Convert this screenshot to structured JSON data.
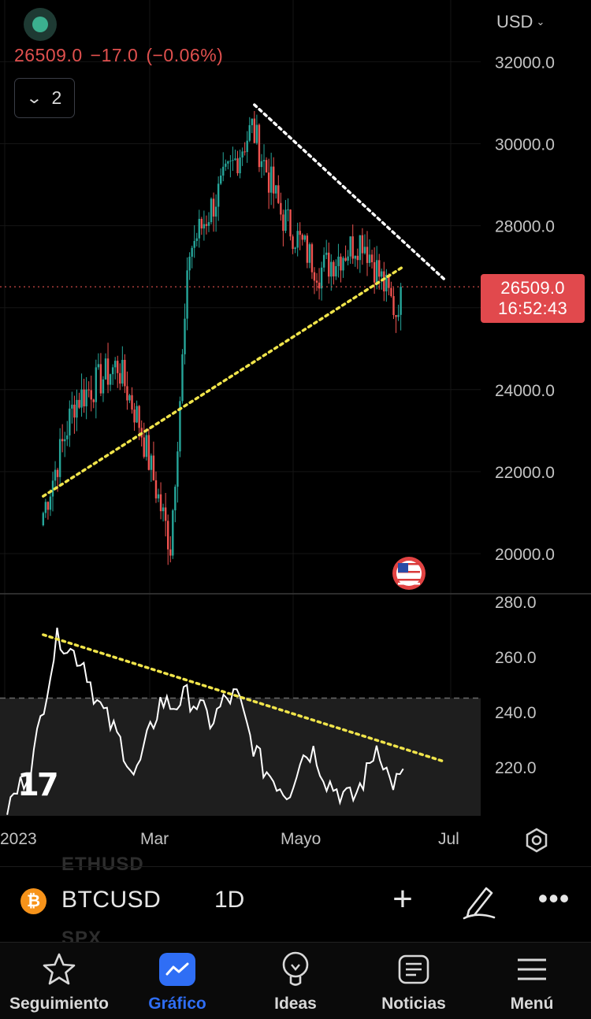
{
  "header": {
    "currency": "USD",
    "last_price": "26509.0",
    "change": "−17.0",
    "change_pct": "(−0.06%)",
    "indicator_count": "2"
  },
  "price_tag": {
    "price": "26509.0",
    "countdown": "16:52:43"
  },
  "colors": {
    "up": "#26a69a",
    "down": "#ef5350",
    "price_line": "#e0504e",
    "trend_yellow": "#f0e44a",
    "trend_white": "#ffffff",
    "accent": "#2f6ef5"
  },
  "chart_data": [
    {
      "type": "candlestick",
      "symbol": "BTCUSD",
      "interval": "1D",
      "x_ticks": [
        "2023",
        "Mar",
        "Mayo",
        "Jul"
      ],
      "y_ticks": [
        20000,
        22000,
        24000,
        26000,
        28000,
        30000,
        32000
      ],
      "y_tick_labels": [
        "20000.0",
        "22000.0",
        "24000.0",
        "",
        "28000.0",
        "30000.0",
        "32000.0"
      ],
      "ylim": [
        19000,
        33000
      ],
      "current_price": 26509,
      "grid": true,
      "ohlc_anchors": [
        {
          "date": "2023-01-16",
          "close": 21000
        },
        {
          "date": "2023-01-29",
          "close": 23700
        },
        {
          "date": "2023-02-16",
          "close": 24600
        },
        {
          "date": "2023-02-25",
          "close": 23200
        },
        {
          "date": "2023-03-10",
          "close": 20200
        },
        {
          "date": "2023-03-18",
          "close": 27400
        },
        {
          "date": "2023-04-13",
          "close": 30400
        },
        {
          "date": "2023-04-25",
          "close": 28300
        },
        {
          "date": "2023-05-11",
          "close": 26900
        },
        {
          "date": "2023-05-29",
          "close": 27700
        },
        {
          "date": "2023-06-12",
          "close": 25900
        },
        {
          "date": "2023-06-14",
          "close": 26509
        }
      ],
      "trendlines": [
        {
          "color": "white",
          "style": "dotted",
          "from": {
            "date": "2023-04-14",
            "price": 30950
          },
          "to": {
            "date": "2023-07-02",
            "price": 26700
          }
        },
        {
          "color": "yellow",
          "style": "dotted",
          "from": {
            "date": "2023-01-16",
            "price": 21400
          },
          "to": {
            "date": "2023-06-15",
            "price": 27000
          }
        }
      ]
    },
    {
      "type": "line",
      "series": [
        {
          "values": [
            205,
            213,
            222,
            247,
            268,
            262,
            258,
            244,
            236,
            228,
            216,
            230,
            244,
            242,
            246,
            242,
            236,
            244,
            246,
            231,
            220,
            215,
            210,
            224,
            226,
            215,
            211,
            208,
            216,
            229,
            214,
            216
          ]
        }
      ],
      "ylim": [
        205,
        285
      ],
      "y_ticks": [
        220,
        240,
        260,
        280
      ],
      "y_tick_labels": [
        "220.0",
        "240.0",
        "260.0",
        "280.0"
      ],
      "reference_line": 245,
      "trendlines": [
        {
          "color": "yellow",
          "style": "dotted",
          "from": {
            "date": "2023-01-16",
            "value": 268
          },
          "to": {
            "date": "2023-07-02",
            "value": 222
          }
        }
      ]
    }
  ],
  "time_axis": {
    "labels": [
      "2023",
      "Mar",
      "Mayo",
      "Jul"
    ]
  },
  "ghost_symbols": [
    "ETHUSD",
    "SPX"
  ],
  "symbol_bar": {
    "symbol": "BTCUSD",
    "interval": "1D",
    "btc_glyph": "₿"
  },
  "tabs": [
    {
      "label": "Seguimiento",
      "icon": "star-icon",
      "active": false
    },
    {
      "label": "Gráfico",
      "icon": "chart-icon",
      "active": true
    },
    {
      "label": "Ideas",
      "icon": "lightbulb-icon",
      "active": false
    },
    {
      "label": "Noticias",
      "icon": "news-icon",
      "active": false
    },
    {
      "label": "Menú",
      "icon": "menu-icon",
      "active": false
    }
  ]
}
